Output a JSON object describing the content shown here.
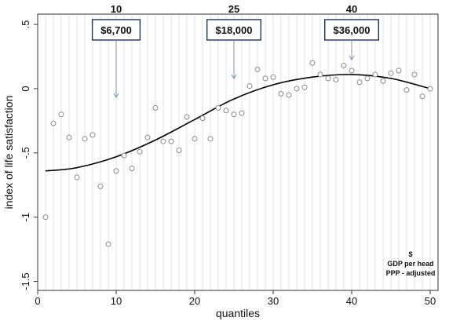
{
  "chart_data": {
    "type": "scatter",
    "xlabel": "quantiles",
    "ylabel": "index of life satisfaction",
    "xlim": [
      0,
      51
    ],
    "ylim": [
      -1.57,
      0.58
    ],
    "x_ticks": [
      0,
      10,
      20,
      30,
      40,
      50
    ],
    "y_ticks": [
      0.5,
      0,
      -0.5,
      -1,
      -1.5
    ],
    "y_tick_labels": [
      ".5",
      "0",
      "-.5",
      "-1",
      "-1.5"
    ],
    "grid": "vertical lines at each quantile",
    "points": [
      {
        "x": 1,
        "y": -1.0
      },
      {
        "x": 2,
        "y": -0.27
      },
      {
        "x": 3,
        "y": -0.2
      },
      {
        "x": 4,
        "y": -0.38
      },
      {
        "x": 5,
        "y": -0.69
      },
      {
        "x": 6,
        "y": -0.39
      },
      {
        "x": 7,
        "y": -0.36
      },
      {
        "x": 8,
        "y": -0.76
      },
      {
        "x": 9,
        "y": -1.21
      },
      {
        "x": 10,
        "y": -0.64
      },
      {
        "x": 11,
        "y": -0.52
      },
      {
        "x": 12,
        "y": -0.62
      },
      {
        "x": 13,
        "y": -0.49
      },
      {
        "x": 14,
        "y": -0.38
      },
      {
        "x": 15,
        "y": -0.15
      },
      {
        "x": 16,
        "y": -0.41
      },
      {
        "x": 17,
        "y": -0.41
      },
      {
        "x": 18,
        "y": -0.48
      },
      {
        "x": 19,
        "y": -0.22
      },
      {
        "x": 20,
        "y": -0.39
      },
      {
        "x": 21,
        "y": -0.23
      },
      {
        "x": 22,
        "y": -0.39
      },
      {
        "x": 23,
        "y": -0.15
      },
      {
        "x": 24,
        "y": -0.17
      },
      {
        "x": 25,
        "y": -0.2
      },
      {
        "x": 26,
        "y": -0.19
      },
      {
        "x": 27,
        "y": 0.02
      },
      {
        "x": 28,
        "y": 0.15
      },
      {
        "x": 29,
        "y": 0.08
      },
      {
        "x": 30,
        "y": 0.09
      },
      {
        "x": 31,
        "y": -0.04
      },
      {
        "x": 32,
        "y": -0.05
      },
      {
        "x": 33,
        "y": 0.0
      },
      {
        "x": 34,
        "y": 0.01
      },
      {
        "x": 35,
        "y": 0.2
      },
      {
        "x": 36,
        "y": 0.11
      },
      {
        "x": 37,
        "y": 0.08
      },
      {
        "x": 38,
        "y": 0.07
      },
      {
        "x": 39,
        "y": 0.18
      },
      {
        "x": 40,
        "y": 0.14
      },
      {
        "x": 41,
        "y": 0.05
      },
      {
        "x": 42,
        "y": 0.08
      },
      {
        "x": 43,
        "y": 0.11
      },
      {
        "x": 44,
        "y": 0.06
      },
      {
        "x": 45,
        "y": 0.12
      },
      {
        "x": 46,
        "y": 0.14
      },
      {
        "x": 47,
        "y": -0.01
      },
      {
        "x": 48,
        "y": 0.11
      },
      {
        "x": 49,
        "y": -0.06
      },
      {
        "x": 50,
        "y": 0.0
      }
    ],
    "fit_curve": {
      "x": [
        1,
        5,
        10,
        15,
        20,
        25,
        30,
        35,
        40,
        45,
        50
      ],
      "y": [
        -0.64,
        -0.615,
        -0.53,
        -0.4,
        -0.24,
        -0.08,
        0.03,
        0.09,
        0.11,
        0.08,
        0.0
      ]
    },
    "annotations": [
      {
        "quantile": "10",
        "value": "$6,700",
        "x": 10
      },
      {
        "quantile": "25",
        "value": "$18,000",
        "x": 25
      },
      {
        "quantile": "40",
        "value": "$36,000",
        "x": 40
      }
    ],
    "note": [
      "$",
      "GDP per head",
      "PPP - adjusted"
    ],
    "colors": {
      "points": "#8a8a8a",
      "curve": "#000000",
      "grid": "#d9d9d9",
      "arrow": "#7b93ab"
    }
  }
}
